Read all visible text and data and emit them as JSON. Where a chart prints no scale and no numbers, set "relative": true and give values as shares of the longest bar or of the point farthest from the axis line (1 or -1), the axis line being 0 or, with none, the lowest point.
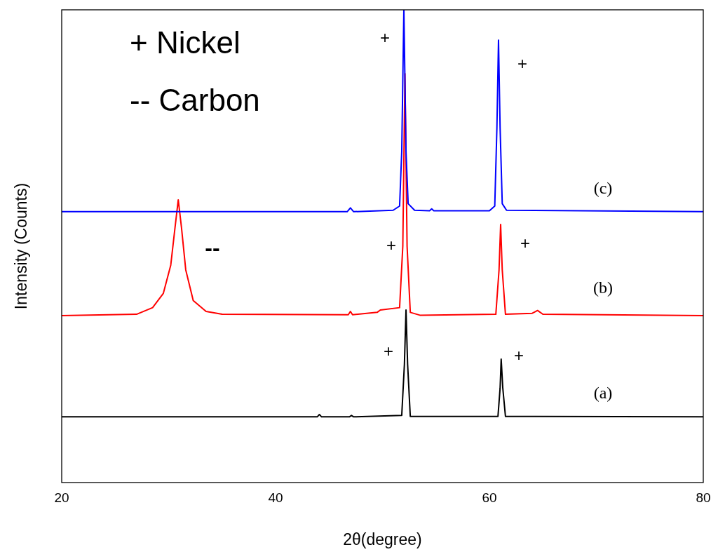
{
  "chart_data": {
    "type": "line",
    "relative": true,
    "xlabel": "2θ(degree)",
    "ylabel": "Intensity (Counts)",
    "xlim": [
      20,
      80
    ],
    "xticks": [
      20,
      40,
      60,
      80
    ],
    "grid": false,
    "line_style": "solid",
    "series": [
      {
        "color": "#0000ff",
        "x": [
          20,
          46.7,
          47,
          47.3,
          51,
          51.6,
          51.8,
          52,
          52.2,
          52.4,
          53,
          54.4,
          54.6,
          54.8,
          60,
          60.5,
          60.7,
          60.85,
          61,
          61.2,
          61.6,
          80
        ],
        "values": [
          0.573,
          0.573,
          0.581,
          0.573,
          0.576,
          0.585,
          0.7,
          1,
          0.7,
          0.59,
          0.576,
          0.575,
          0.579,
          0.575,
          0.575,
          0.585,
          0.75,
          0.936,
          0.75,
          0.59,
          0.576,
          0.573
        ]
      },
      {
        "color": "#ff0000",
        "x": [
          20,
          27,
          28.5,
          29.5,
          30.2,
          30.6,
          30.9,
          31.2,
          31.6,
          32.3,
          33.5,
          35,
          46.8,
          47,
          47.2,
          49.5,
          49.8,
          51.6,
          51.9,
          52.1,
          52.3,
          52.6,
          53.5,
          60.6,
          60.9,
          61.05,
          61.2,
          61.5,
          64,
          64.5,
          65,
          80
        ],
        "values": [
          0.353,
          0.356,
          0.37,
          0.4,
          0.46,
          0.54,
          0.598,
          0.54,
          0.45,
          0.385,
          0.362,
          0.356,
          0.355,
          0.362,
          0.355,
          0.36,
          0.365,
          0.37,
          0.5,
          0.865,
          0.5,
          0.36,
          0.354,
          0.356,
          0.45,
          0.546,
          0.45,
          0.356,
          0.358,
          0.364,
          0.356,
          0.353
        ]
      },
      {
        "color": "#000000",
        "x": [
          20,
          43.9,
          44.1,
          44.3,
          46.9,
          47.1,
          47.3,
          51.8,
          52.05,
          52.2,
          52.35,
          52.6,
          60.8,
          61,
          61.1,
          61.25,
          61.5,
          80
        ],
        "values": [
          0.139,
          0.139,
          0.144,
          0.139,
          0.139,
          0.142,
          0.139,
          0.142,
          0.25,
          0.365,
          0.25,
          0.14,
          0.14,
          0.2,
          0.261,
          0.2,
          0.14,
          0.139
        ]
      }
    ],
    "annotations": [
      "+ Nickel",
      "-- Carbon",
      "+",
      "+",
      "+",
      "+",
      "--",
      "+",
      "+",
      "(c)",
      "(b)",
      "(a)"
    ]
  }
}
